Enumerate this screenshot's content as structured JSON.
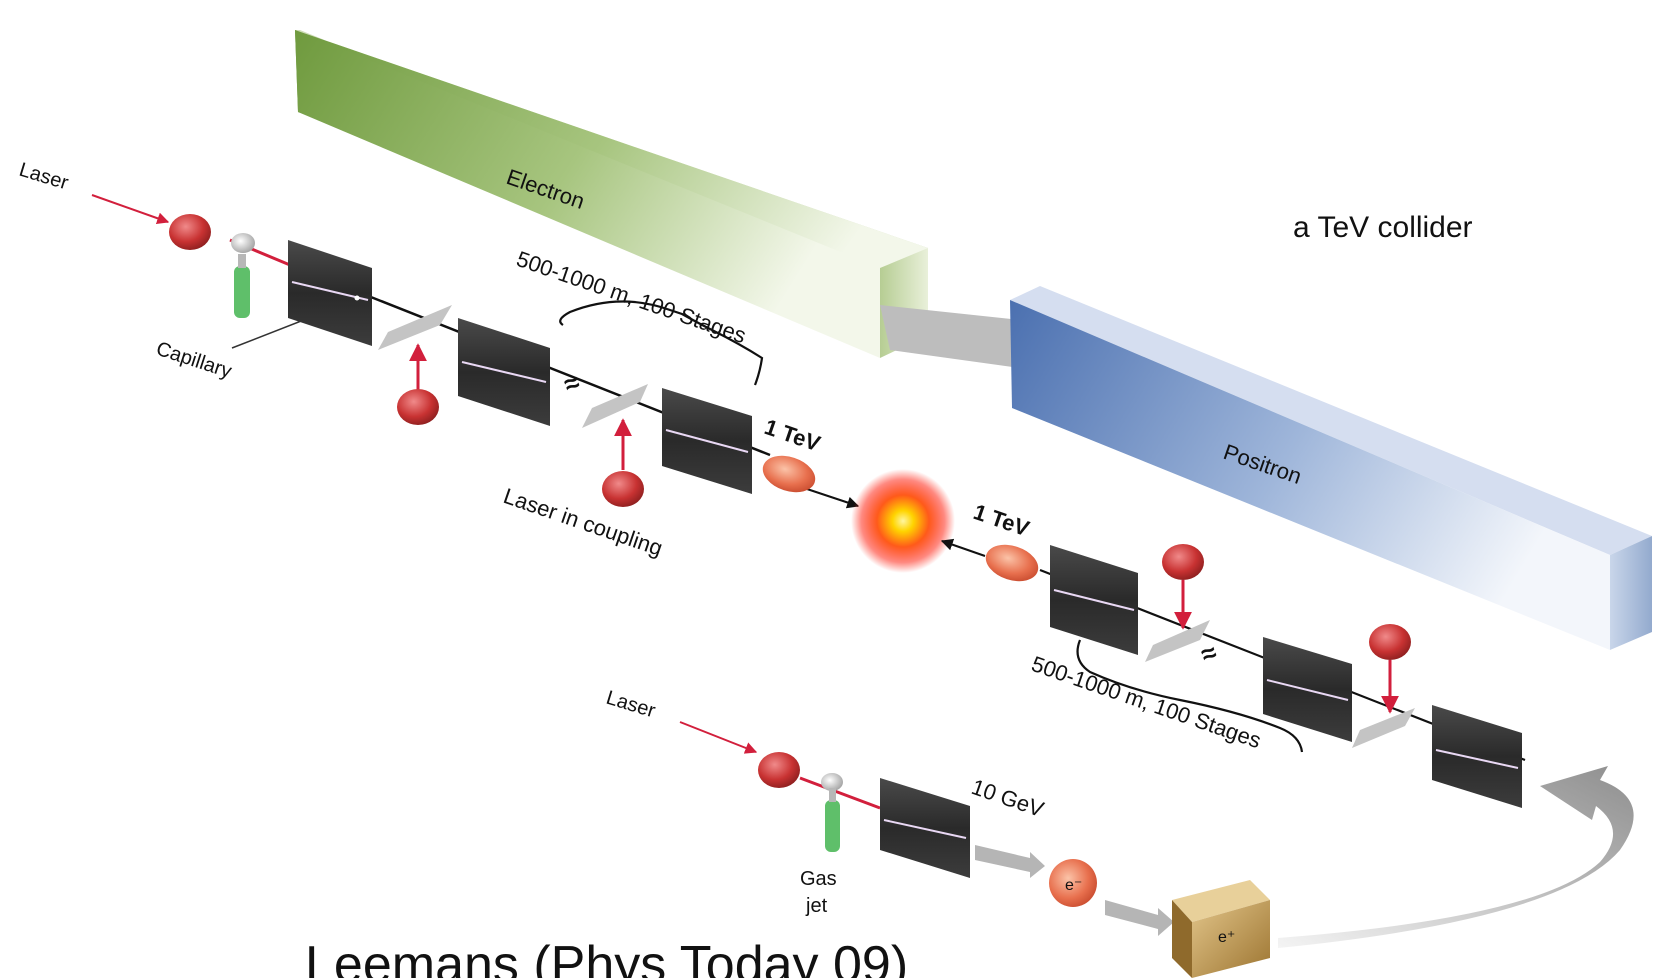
{
  "caption": "a TeV collider",
  "footer": "Leemans (Phys Today 09)",
  "beam_labels": {
    "electron": "Electron",
    "positron": "Positron"
  },
  "labels": {
    "laser_top": "Laser",
    "capillary": "Capillary",
    "stages_top": "500-1000 m, 100 Stages",
    "tev_left": "1 TeV",
    "laser_in_coupling": "Laser in coupling",
    "tev_right": "1 TeV",
    "stages_bottom": "500-1000 m, 100 Stages",
    "laser_bottom": "Laser",
    "gev": "10 GeV",
    "gas": "Gas",
    "jet": "jet",
    "e_minus": "e⁻",
    "e_plus": "e⁺"
  },
  "colors": {
    "electron_box": "#7aa34a",
    "positron_box": "#4e74b3",
    "laser": "#d21f3c",
    "collision": "#ffd700"
  }
}
